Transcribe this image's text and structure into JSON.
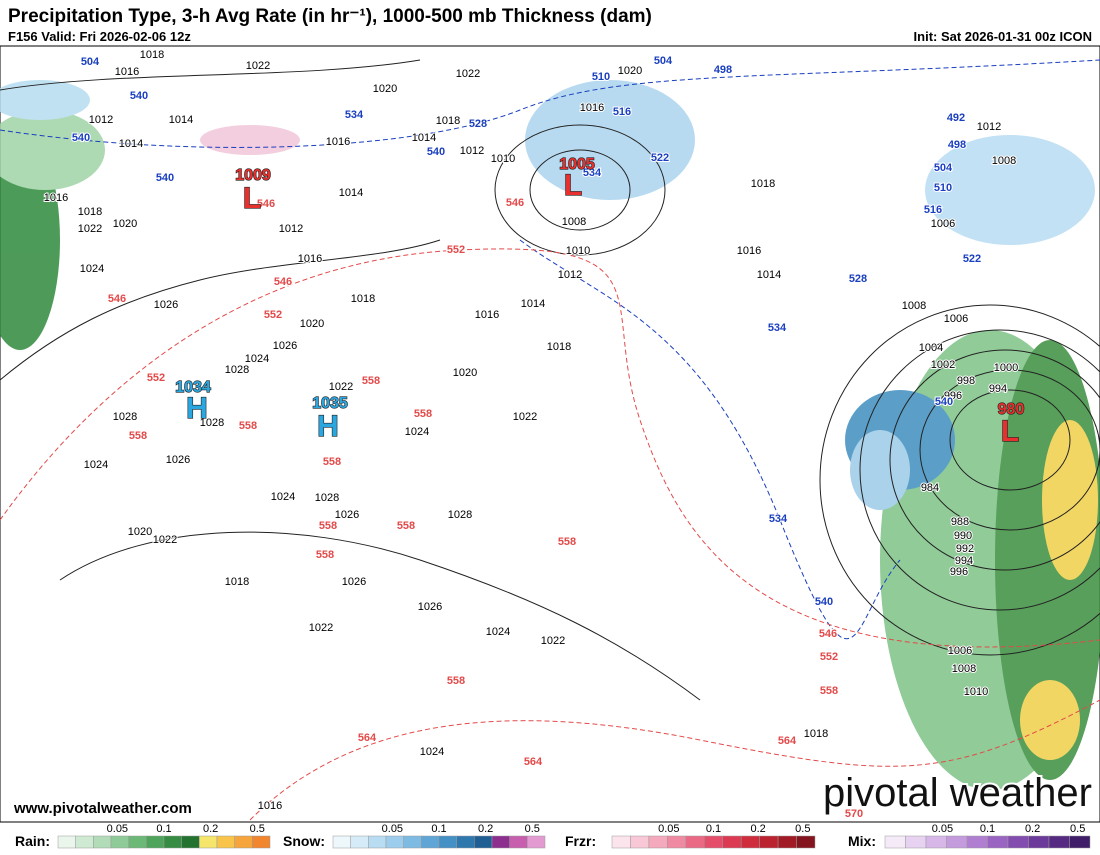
{
  "header": {
    "title": "Precipitation Type, 3-h Avg Rate (in hr⁻¹), 1000-500 mb Thickness (dam)",
    "valid": "F156 Valid: Fri 2026-02-06 12z",
    "init": "Init: Sat 2026-01-31 00z ICON"
  },
  "centers": [
    {
      "letter": "L",
      "value": 1009
    },
    {
      "letter": "L",
      "value": 1005
    },
    {
      "letter": "H",
      "value": 1034
    },
    {
      "letter": "H",
      "value": 1035
    },
    {
      "letter": "L",
      "value": 980
    }
  ],
  "isobar_labels": [
    1018,
    1016,
    1022,
    1020,
    1022,
    1020,
    1012,
    1014,
    1014,
    1016,
    1014,
    1018,
    1012,
    1010,
    1016,
    1018,
    1012,
    1008,
    1006,
    1016,
    1018,
    1022,
    1020,
    1024,
    1014,
    1012,
    1016,
    1008,
    1010,
    1012,
    1016,
    1014,
    1008,
    1006,
    1004,
    1002,
    1000,
    998,
    994,
    996,
    984,
    988,
    990,
    992,
    994,
    996,
    1006,
    1008,
    1010,
    1018,
    1014,
    1016,
    1018,
    1020,
    1026,
    1026,
    1024,
    1028,
    1020,
    1022,
    1022,
    1028,
    1028,
    1024,
    1024,
    1026,
    1024,
    1028,
    1026,
    1028,
    1020,
    1022,
    1018,
    1026,
    1026,
    1022,
    1024,
    1022,
    1024,
    1018,
    1016
  ],
  "thickness_labels_blue": [
    504,
    540,
    534,
    540,
    540,
    540,
    528,
    510,
    504,
    498,
    516,
    522,
    534,
    492,
    498,
    504,
    510,
    516,
    522,
    528,
    534,
    540,
    534,
    540
  ],
  "thickness_labels_red": [
    546,
    546,
    552,
    552,
    546,
    546,
    552,
    558,
    558,
    558,
    558,
    558,
    558,
    558,
    558,
    558,
    558,
    564,
    564,
    564,
    546,
    552,
    558,
    570
  ],
  "footer": {
    "website": "www.pivotalweather.com",
    "logo": "pivotal weather"
  },
  "legend": [
    {
      "name": "Rain:",
      "ticks": [
        "0.05",
        "0.1",
        "0.2",
        "0.5"
      ]
    },
    {
      "name": "Snow:",
      "ticks": [
        "0.05",
        "0.1",
        "0.2",
        "0.5"
      ]
    },
    {
      "name": "Frzr:",
      "ticks": [
        "0.05",
        "0.1",
        "0.2",
        "0.5"
      ]
    },
    {
      "name": "Mix:",
      "ticks": [
        "0.05",
        "0.1",
        "0.2",
        "0.5"
      ]
    }
  ]
}
